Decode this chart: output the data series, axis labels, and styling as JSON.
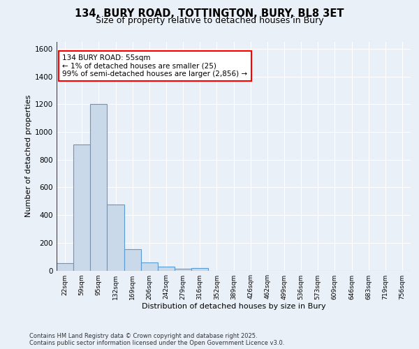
{
  "title": "134, BURY ROAD, TOTTINGTON, BURY, BL8 3ET",
  "subtitle": "Size of property relative to detached houses in Bury",
  "xlabel": "Distribution of detached houses by size in Bury",
  "ylabel": "Number of detached properties",
  "bin_labels": [
    "22sqm",
    "59sqm",
    "95sqm",
    "132sqm",
    "169sqm",
    "206sqm",
    "242sqm",
    "279sqm",
    "316sqm",
    "352sqm",
    "389sqm",
    "426sqm",
    "462sqm",
    "499sqm",
    "536sqm",
    "573sqm",
    "609sqm",
    "646sqm",
    "683sqm",
    "719sqm",
    "756sqm"
  ],
  "bar_heights": [
    55,
    910,
    1200,
    475,
    155,
    60,
    30,
    15,
    20,
    0,
    0,
    0,
    0,
    0,
    0,
    0,
    0,
    0,
    0,
    0,
    0
  ],
  "bar_color": "#c9d9ea",
  "bar_edge_color": "#5b9bd5",
  "annotation_text": "134 BURY ROAD: 55sqm\n← 1% of detached houses are smaller (25)\n99% of semi-detached houses are larger (2,856) →",
  "annotation_box_color": "#ffffff",
  "annotation_box_edge": "#ff0000",
  "ylim": [
    0,
    1650
  ],
  "yticks": [
    0,
    200,
    400,
    600,
    800,
    1000,
    1200,
    1400,
    1600
  ],
  "footnote": "Contains HM Land Registry data © Crown copyright and database right 2025.\nContains public sector information licensed under the Open Government Licence v3.0.",
  "bg_color": "#eaf0f7",
  "plot_bg_color": "#eaf0f7",
  "grid_color": "#ffffff",
  "vline_color": "#cc0000",
  "title_fontsize": 10.5,
  "subtitle_fontsize": 9.0
}
